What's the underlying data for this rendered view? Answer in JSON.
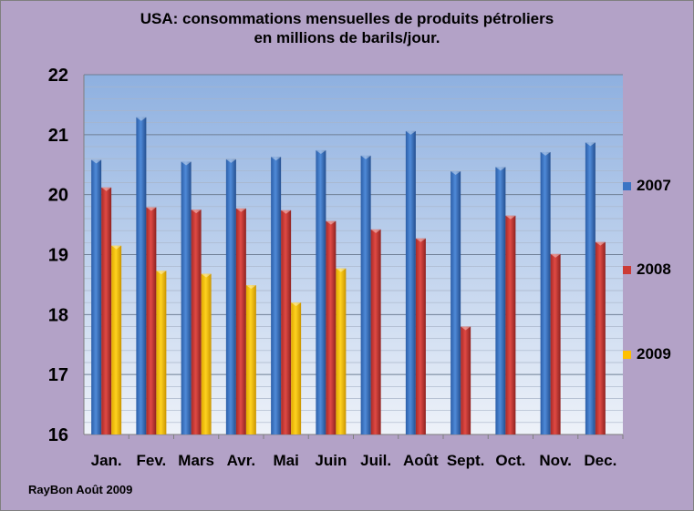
{
  "chart_data": {
    "type": "bar",
    "title": "USA: consommations mensuelles de produits pétroliers",
    "subtitle": "en millions de barils/jour.",
    "xlabel": "",
    "ylabel": "",
    "ylim": [
      16,
      22
    ],
    "yticks": [
      16,
      17,
      18,
      19,
      20,
      21,
      22
    ],
    "grid": true,
    "legend_position": "right",
    "categories": [
      "Jan.",
      "Fev.",
      "Mars",
      "Avr.",
      "Mai",
      "Juin",
      "Juil.",
      "Août",
      "Sept.",
      "Oct.",
      "Nov.",
      "Dec."
    ],
    "series": [
      {
        "name": "2007",
        "color": "#3a74c4",
        "values": [
          20.58,
          21.29,
          20.55,
          20.59,
          20.63,
          20.74,
          20.65,
          21.06,
          20.39,
          20.46,
          20.71,
          20.87
        ]
      },
      {
        "name": "2008",
        "color": "#cc3a35",
        "values": [
          20.12,
          19.79,
          19.75,
          19.77,
          19.74,
          19.56,
          19.42,
          19.27,
          17.8,
          19.65,
          19.01,
          19.21
        ]
      },
      {
        "name": "2009",
        "color": "#ffc000",
        "values": [
          19.15,
          18.73,
          18.68,
          18.49,
          18.2,
          18.77,
          null,
          null,
          null,
          null,
          null,
          null
        ]
      }
    ]
  },
  "credit": "RayBon  Août 2009"
}
